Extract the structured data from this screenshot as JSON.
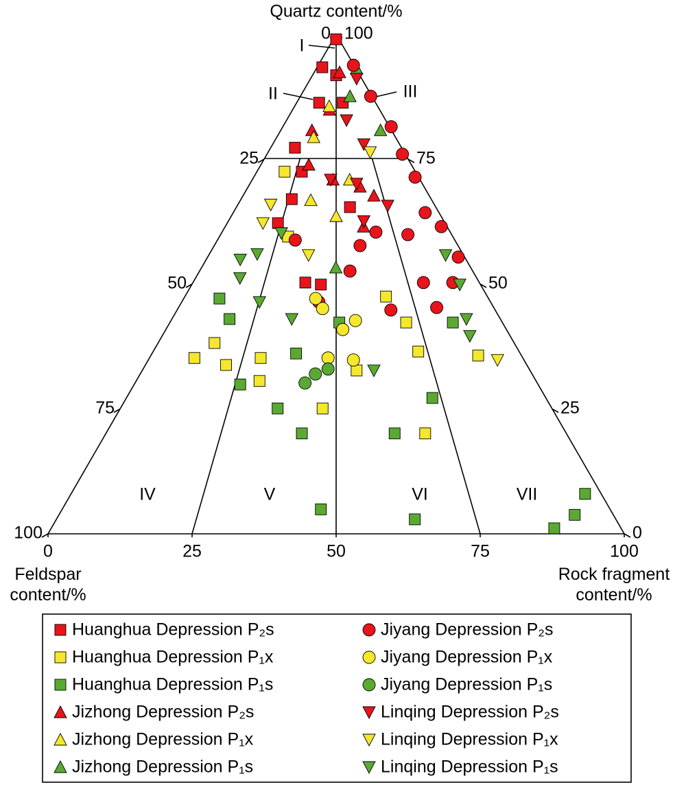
{
  "chart_data": {
    "type": "ternary",
    "title": "Quartz content/%",
    "left_label": "Feldspar content/%",
    "right_label": "Rock fragment content/%",
    "feldspar_ticks": [
      0,
      25,
      50,
      75,
      100
    ],
    "quartz_ticks": [
      100,
      75,
      50,
      25,
      0
    ],
    "bottom_ticks": [
      0,
      25,
      50,
      75,
      100
    ],
    "regions": [
      "I",
      "II",
      "III",
      "IV",
      "V",
      "VI",
      "VII"
    ],
    "series": [
      {
        "name": "Huanghua Depression P₂s",
        "color": "#e8141b",
        "marker": "square",
        "quartz": [
          99,
          93.4,
          91.8,
          86.3,
          77.3,
          72.5,
          67.0,
          62.2,
          50.3,
          49.9,
          65.4,
          86.3
        ],
        "rock_fragment": [
          0.5,
          0.9,
          4.1,
          3.9,
          4.2,
          7.8,
          8.8,
          8.8,
          19.5,
          22.4,
          19.7,
          8.0
        ]
      },
      {
        "name": "Huanghua Depression P₁x",
        "color": "#f5e82c",
        "marker": "square",
        "quartz": [
          35.2,
          38.2,
          33.8,
          35.2,
          30.6,
          59.5,
          25.1,
          32.7,
          47.5,
          42.3,
          36.5,
          35.7,
          20.1,
          72.5
        ],
        "rock_fragment": [
          7.8,
          9.8,
          14.0,
          19.3,
          21.4,
          11.9,
          35.1,
          37.2,
          34.9,
          41.0,
          46.0,
          56.8,
          55.4,
          4.8
        ]
      },
      {
        "name": "Huanghua Depression P₁s",
        "color": "#5aaa32",
        "marker": "square",
        "quartz": [
          47.1,
          43.0,
          29.9,
          25.1,
          20.1,
          4.9,
          2.9,
          1.1,
          3.8,
          8.0,
          42.3,
          27.2,
          20.1,
          42.3,
          36.1
        ],
        "rock_fragment": [
          6.2,
          10.0,
          18.4,
          27.3,
          34.0,
          44.9,
          62.2,
          87.3,
          89.5,
          89.2,
          49.1,
          53.1,
          50.1,
          29.4,
          25.0
        ]
      },
      {
        "name": "Jizhong Depression P₂s",
        "color": "#e8141b",
        "marker": "triangle",
        "quartz": [
          84.9,
          73.9,
          70.9,
          69.5,
          92.4,
          80.8,
          61.5,
          67.7
        ],
        "rock_fragment": [
          6.4,
          8.3,
          14.0,
          19.4,
          4.4,
          5.4,
          24.0,
          22.7
        ]
      },
      {
        "name": "Jizhong Depression P₁x",
        "color": "#f5e82c",
        "marker": "triangle",
        "quartz": [
          66.8,
          63.6,
          70.9,
          79.4,
          85.6
        ],
        "rock_fragment": [
          12.2,
          18.2,
          16.9,
          6.4,
          6.0
        ]
      },
      {
        "name": "Jizhong Depression P₁s",
        "color": "#5aaa32",
        "marker": "triangle",
        "quartz": [
          53.3,
          93.1,
          87.6,
          80.8
        ],
        "rock_fragment": [
          23.3,
          7.0,
          8.6,
          17.3
        ]
      },
      {
        "name": "Jiyang Depression P₂s",
        "color": "#e8141b",
        "marker": "circle",
        "quartz": [
          93.8,
          87.6,
          81.5,
          76.0,
          71.4,
          64.3,
          61.5,
          55.4,
          50.3,
          50.3,
          45.3,
          44.8,
          52.6,
          46.4,
          58.8,
          57.7,
          60.4,
          59.9
        ],
        "rock_fragment": [
          6.1,
          12.2,
          18.8,
          23.5,
          28.0,
          33.3,
          37.5,
          43.5,
          40.0,
          45.1,
          44.8,
          37.1,
          26.1,
          23.8,
          13.5,
          25.3,
          26.7,
          32.5
        ]
      },
      {
        "name": "Jiyang Depression P₁x",
        "color": "#f5e82c",
        "marker": "circle",
        "quartz": [
          47.1,
          40.9,
          34.8,
          35.2,
          42.7,
          45.1
        ],
        "rock_fragment": [
          22.9,
          30.7,
          35.6,
          31.0,
          32.0,
          25.1
        ]
      },
      {
        "name": "Jiyang Depression P₁s",
        "color": "#5aaa32",
        "marker": "circle",
        "quartz": [
          30.2,
          32.0,
          33.0
        ],
        "rock_fragment": [
          29.5,
          30.4,
          32.1
        ]
      },
      {
        "name": "Linqing Depression P₂s",
        "color": "#e8141b",
        "marker": "triangle-down",
        "quartz": [
          70.9,
          70.1,
          65.7,
          62.6,
          82.8,
          91.1,
          78.0
        ],
        "rock_fragment": [
          13.6,
          18.5,
          26.1,
          23.5,
          10.4,
          8.0,
          15.8
        ]
      },
      {
        "name": "Linqing Depression P₁x",
        "color": "#f5e82c",
        "marker": "triangle-down",
        "quartz": [
          62.2,
          65.9,
          55.8,
          34.8,
          76.4
        ],
        "rock_fragment": [
          6.2,
          5.7,
          17.3,
          60.6,
          17.7
        ]
      },
      {
        "name": "Linqing Depression P₁s",
        "color": "#5aaa32",
        "marker": "triangle-down",
        "quartz": [
          54.9,
          56.0,
          51.2,
          46.4,
          43.0,
          32.7,
          43.0,
          39.6,
          55.8,
          49.9,
          60.2
        ],
        "rock_fragment": [
          5.9,
          8.3,
          7.7,
          13.5,
          20.8,
          40.2,
          51.1,
          53.4,
          41.1,
          46.5,
          10.4
        ]
      }
    ]
  }
}
